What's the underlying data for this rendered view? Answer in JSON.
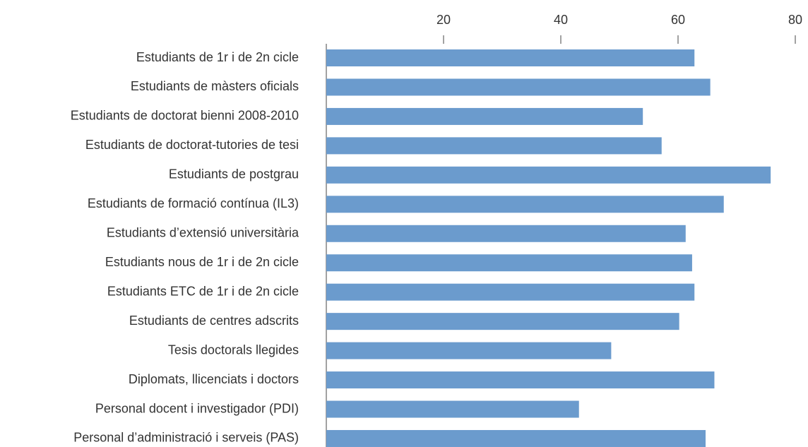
{
  "chart_data": {
    "type": "bar",
    "orientation": "horizontal",
    "categories": [
      "Estudiants de 1r i de 2n cicle",
      "Estudiants de màsters oficials",
      "Estudiants de doctorat bienni 2008-2010",
      "Estudiants de doctorat-tutories de tesi",
      "Estudiants de postgrau",
      "Estudiants de formació contínua (IL3)",
      "Estudiants d’extensió universitària",
      "Estudiants nous de 1r i de 2n cicle",
      "Estudiants ETC de 1r i de 2n cicle",
      "Estudiants de centres adscrits",
      "Tesis doctorals llegides",
      "Diplomats, llicenciats i doctors",
      "Personal docent i investigador (PDI)",
      "Personal d’administració i serveis (PAS)"
    ],
    "values": [
      62.8,
      65.5,
      54.0,
      57.2,
      75.8,
      67.8,
      61.3,
      62.4,
      62.8,
      60.2,
      48.6,
      66.2,
      43.1,
      64.7
    ],
    "color": "#6b9bcd",
    "xlim": [
      0,
      80
    ],
    "xticks": [
      20,
      40,
      60,
      80
    ],
    "xaxis_position": "top"
  }
}
